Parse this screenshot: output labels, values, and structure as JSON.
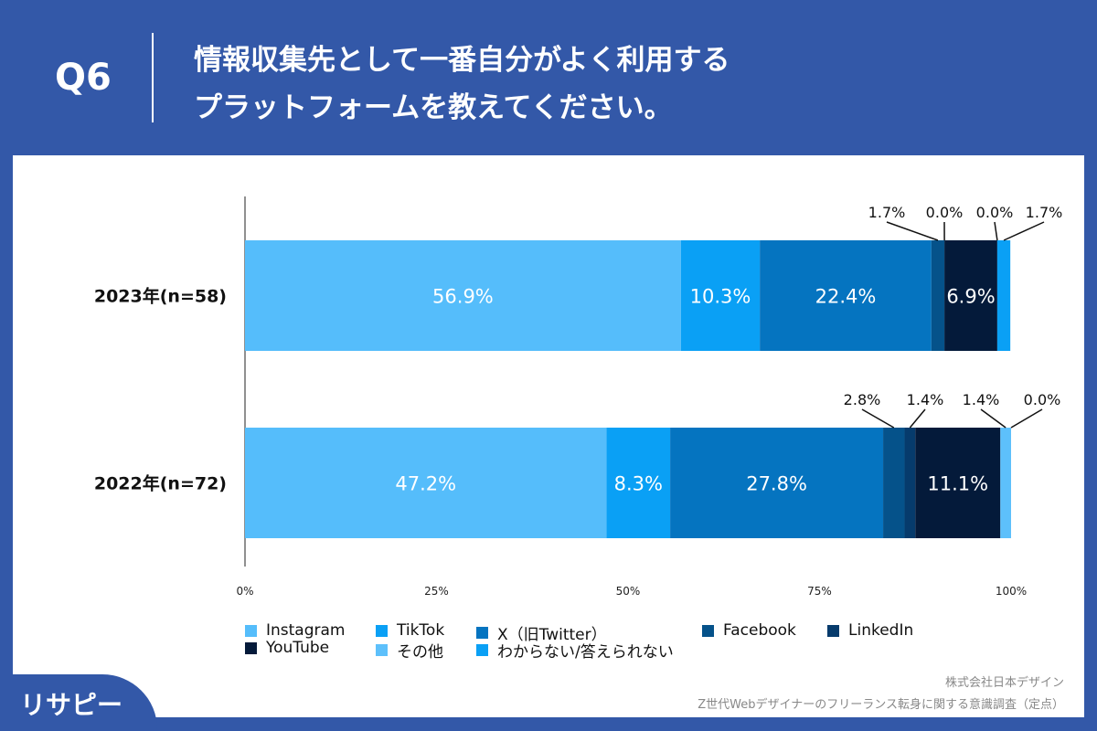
{
  "header": {
    "q": "Q6",
    "title_line1": "情報収集先として一番自分がよく利用する",
    "title_line2": "プラットフォームを教えてください。"
  },
  "chart_data": {
    "type": "bar",
    "orientation": "horizontal",
    "stacked": true,
    "categories": [
      "2023年(n=58)",
      "2022年(n=72)"
    ],
    "xlim": [
      0,
      100
    ],
    "x_ticks": [
      "0%",
      "25%",
      "50%",
      "75%",
      "100%"
    ],
    "series": [
      {
        "name": "Instagram",
        "color": "#55bdfb",
        "values": [
          56.9,
          47.2
        ]
      },
      {
        "name": "TikTok",
        "color": "#0aa0f5",
        "values": [
          10.3,
          8.3
        ]
      },
      {
        "name": "X（旧Twitter）",
        "color": "#0574c0",
        "values": [
          22.4,
          27.8
        ]
      },
      {
        "name": "Facebook",
        "color": "#05528a",
        "values": [
          1.7,
          2.8
        ]
      },
      {
        "name": "LinkedIn",
        "color": "#063b6c",
        "values": [
          0.0,
          1.4
        ]
      },
      {
        "name": "YouTube",
        "color": "#041a3a",
        "values": [
          6.9,
          11.1
        ]
      },
      {
        "name": "その他",
        "color": "#5dc0fb",
        "values": [
          0.0,
          1.4
        ]
      },
      {
        "name": "わからない/答えられない",
        "color": "#0aa0f5",
        "values": [
          1.7,
          0.0
        ]
      }
    ],
    "legend": "bottom",
    "grid": false
  },
  "footer": {
    "company": "株式会社日本デザイン",
    "survey": "Z世代Webデザイナーのフリーランス転身に関する意識調査（定点）",
    "logo": "リサピー"
  }
}
